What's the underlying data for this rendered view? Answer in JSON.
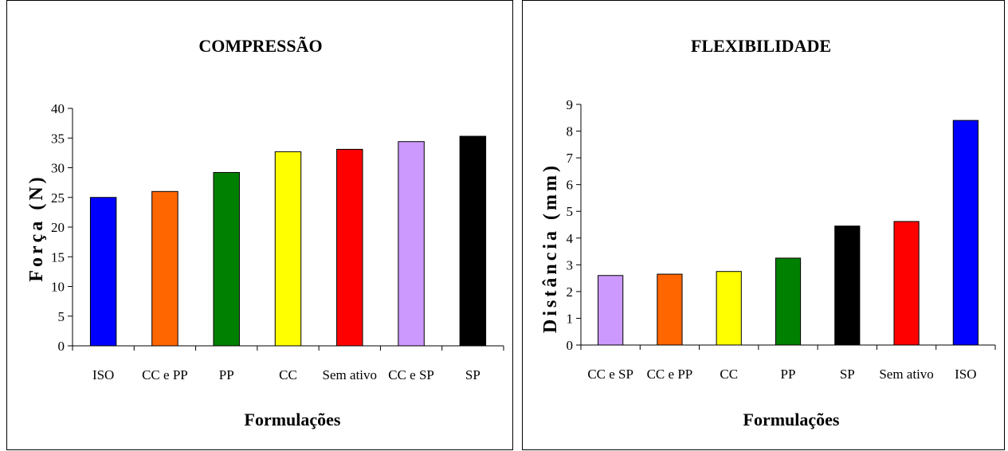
{
  "chart_data": [
    {
      "type": "bar",
      "title": "COMPRESSÃO",
      "xlabel": "Formulações",
      "ylabel": "Força (N)",
      "ylim": [
        0,
        40
      ],
      "yticks": [
        0,
        5,
        10,
        15,
        20,
        25,
        30,
        35,
        40
      ],
      "grid": false,
      "legend": "none",
      "categories": [
        "ISO",
        "CC e PP",
        "PP",
        "CC",
        "Sem ativo",
        "CC e SP",
        "SP"
      ],
      "values": [
        25.0,
        26.0,
        29.2,
        32.7,
        33.1,
        34.4,
        35.3
      ],
      "colors": [
        "#0000ff",
        "#ff6600",
        "#008000",
        "#ffff00",
        "#ff0000",
        "#cc99ff",
        "#000000"
      ]
    },
    {
      "type": "bar",
      "title": "FLEXIBILIDADE",
      "xlabel": "Formulações",
      "ylabel": "Distância (mm)",
      "ylim": [
        0,
        9
      ],
      "yticks": [
        0,
        1,
        2,
        3,
        4,
        5,
        6,
        7,
        8,
        9
      ],
      "grid": false,
      "legend": "none",
      "categories": [
        "CC e SP",
        "CC e PP",
        "CC",
        "PP",
        "SP",
        "Sem ativo",
        "ISO"
      ],
      "values": [
        2.6,
        2.65,
        2.75,
        3.25,
        4.45,
        4.62,
        8.4
      ],
      "colors": [
        "#cc99ff",
        "#ff6600",
        "#ffff00",
        "#008000",
        "#000000",
        "#ff0000",
        "#0000ff"
      ]
    }
  ]
}
